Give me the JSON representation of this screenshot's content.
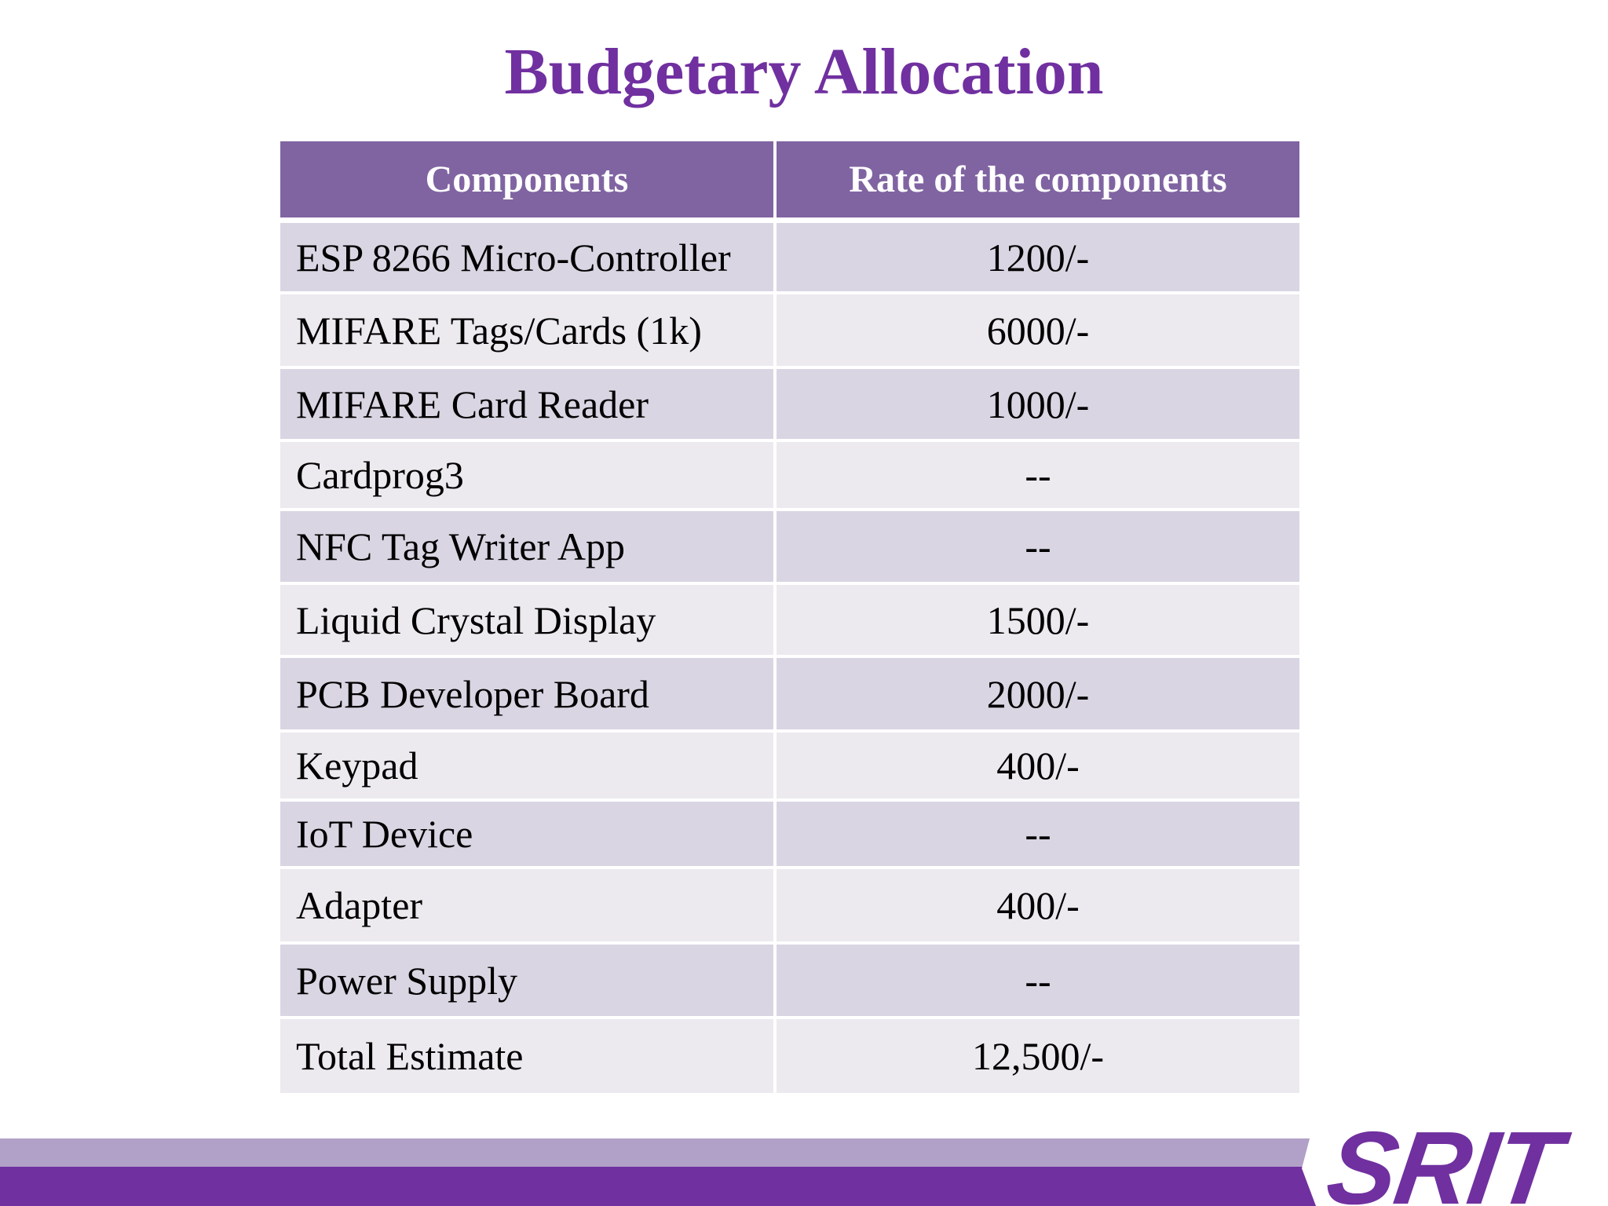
{
  "slide": {
    "title": "Budgetary Allocation",
    "logo_text": "SRIT",
    "colors": {
      "title": "#7030a0",
      "header_bg": "#8064a2",
      "row_dark": "#d9d5e2",
      "row_light": "#ece9ef",
      "footer_light": "#b1a0c7",
      "footer_dark": "#7030a0"
    }
  },
  "table": {
    "headers": [
      "Components",
      "Rate of the components"
    ],
    "rows": [
      {
        "component": "ESP 8266 Micro-Controller",
        "rate": "1200/-"
      },
      {
        "component": "MIFARE Tags/Cards (1k)",
        "rate": "6000/-"
      },
      {
        "component": "MIFARE Card Reader",
        "rate": "1000/-"
      },
      {
        "component": "Cardprog3",
        "rate": "--"
      },
      {
        "component": "NFC Tag Writer App",
        "rate": "--"
      },
      {
        "component": "Liquid Crystal Display",
        "rate": "1500/-"
      },
      {
        "component": "PCB Developer Board",
        "rate": "2000/-"
      },
      {
        "component": "Keypad",
        "rate": "400/-"
      },
      {
        "component": "IoT Device",
        "rate": "--"
      },
      {
        "component": "Adapter",
        "rate": "400/-"
      },
      {
        "component": "Power Supply",
        "rate": "--"
      },
      {
        "component": "Total Estimate",
        "rate": "12,500/-"
      }
    ]
  }
}
